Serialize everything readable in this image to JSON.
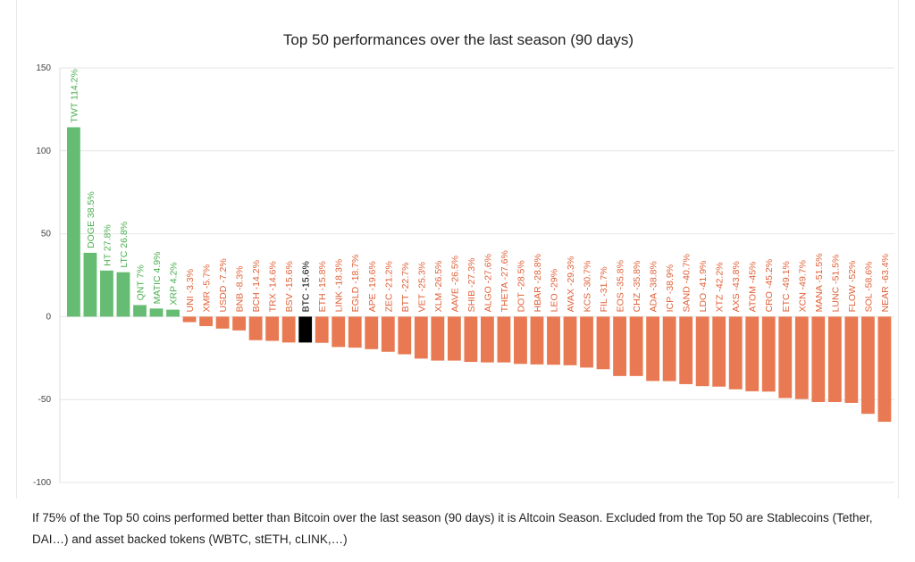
{
  "chart_data": {
    "type": "bar",
    "title": "Top 50 performances over the last season (90 days)",
    "xlabel": "",
    "ylabel": "",
    "ylim": [
      -100,
      150
    ],
    "yticks": [
      150,
      100,
      50,
      0,
      -50,
      -100
    ],
    "grid": true,
    "legend": "none",
    "colors": {
      "positive": "#65bc72",
      "negative": "#e87952",
      "btc": "#000000",
      "label_positive": "#4caf50",
      "label_negative": "#e0623a",
      "label_btc": "#000000"
    },
    "categories": [
      "TWT",
      "DOGE",
      "HT",
      "LTC",
      "QNT",
      "MATIC",
      "XRP",
      "UNI",
      "XMR",
      "USDD",
      "BNB",
      "BCH",
      "TRX",
      "BSV",
      "BTC",
      "ETH",
      "LINK",
      "EGLD",
      "APE",
      "ZEC",
      "BTT",
      "VET",
      "XLM",
      "AAVE",
      "SHIB",
      "ALGO",
      "THETA",
      "DOT",
      "HBAR",
      "LEO",
      "AVAX",
      "KCS",
      "FIL",
      "EOS",
      "CHZ",
      "ADA",
      "ICP",
      "SAND",
      "LDO",
      "XTZ",
      "AXS",
      "ATOM",
      "CRO",
      "ETC",
      "XCN",
      "MANA",
      "LUNC",
      "FLOW",
      "SOL",
      "NEAR"
    ],
    "values": [
      114.2,
      38.5,
      27.8,
      26.8,
      7,
      4.9,
      4.2,
      -3.3,
      -5.7,
      -7.2,
      -8.3,
      -14.2,
      -14.6,
      -15.6,
      -15.6,
      -15.8,
      -18.3,
      -18.7,
      -19.6,
      -21.2,
      -22.7,
      -25.3,
      -26.5,
      -26.5,
      -27.3,
      -27.6,
      -27.6,
      -28.5,
      -28.8,
      -29,
      -29.3,
      -30.7,
      -31.7,
      -35.8,
      -35.8,
      -38.8,
      -38.9,
      -40.7,
      -41.9,
      -42.2,
      -43.8,
      -45,
      -45.2,
      -49.1,
      -49.7,
      -51.5,
      -51.5,
      -52,
      -58.6,
      -63.4
    ],
    "labels": [
      "TWT 114.2%",
      "DOGE 38.5%",
      "HT 27.8%",
      "LTC 26.8%",
      "QNT 7%",
      "MATIC 4.9%",
      "XRP 4.2%",
      "UNI -3.3%",
      "XMR -5.7%",
      "USDD -7.2%",
      "BNB -8.3%",
      "BCH -14.2%",
      "TRX -14.6%",
      "BSV -15.6%",
      "BTC -15.6%",
      "ETH -15.8%",
      "LINK -18.3%",
      "EGLD -18.7%",
      "APE -19.6%",
      "ZEC -21.2%",
      "BTT -22.7%",
      "VET -25.3%",
      "XLM -26.5%",
      "AAVE -26.5%",
      "SHIB -27.3%",
      "ALGO -27.6%",
      "THETA -27.6%",
      "DOT -28.5%",
      "HBAR -28.8%",
      "LEO -29%",
      "AVAX -29.3%",
      "KCS -30.7%",
      "FIL -31.7%",
      "EOS -35.8%",
      "CHZ -35.8%",
      "ADA -38.8%",
      "ICP -38.9%",
      "SAND -40.7%",
      "LDO -41.9%",
      "XTZ -42.2%",
      "AXS -43.8%",
      "ATOM -45%",
      "CRO -45.2%",
      "ETC -49.1%",
      "XCN -49.7%",
      "MANA -51.5%",
      "LUNC -51.5%",
      "FLOW -52%",
      "SOL -58.6%",
      "NEAR -63.4%"
    ],
    "highlight": "BTC"
  },
  "caption": "If 75% of the Top 50 coins performed better than Bitcoin over the last season (90 days) it is Altcoin Season. Excluded from the Top 50 are Stablecoins (Tether, DAI…) and asset backed tokens (WBTC, stETH, cLINK,…)"
}
